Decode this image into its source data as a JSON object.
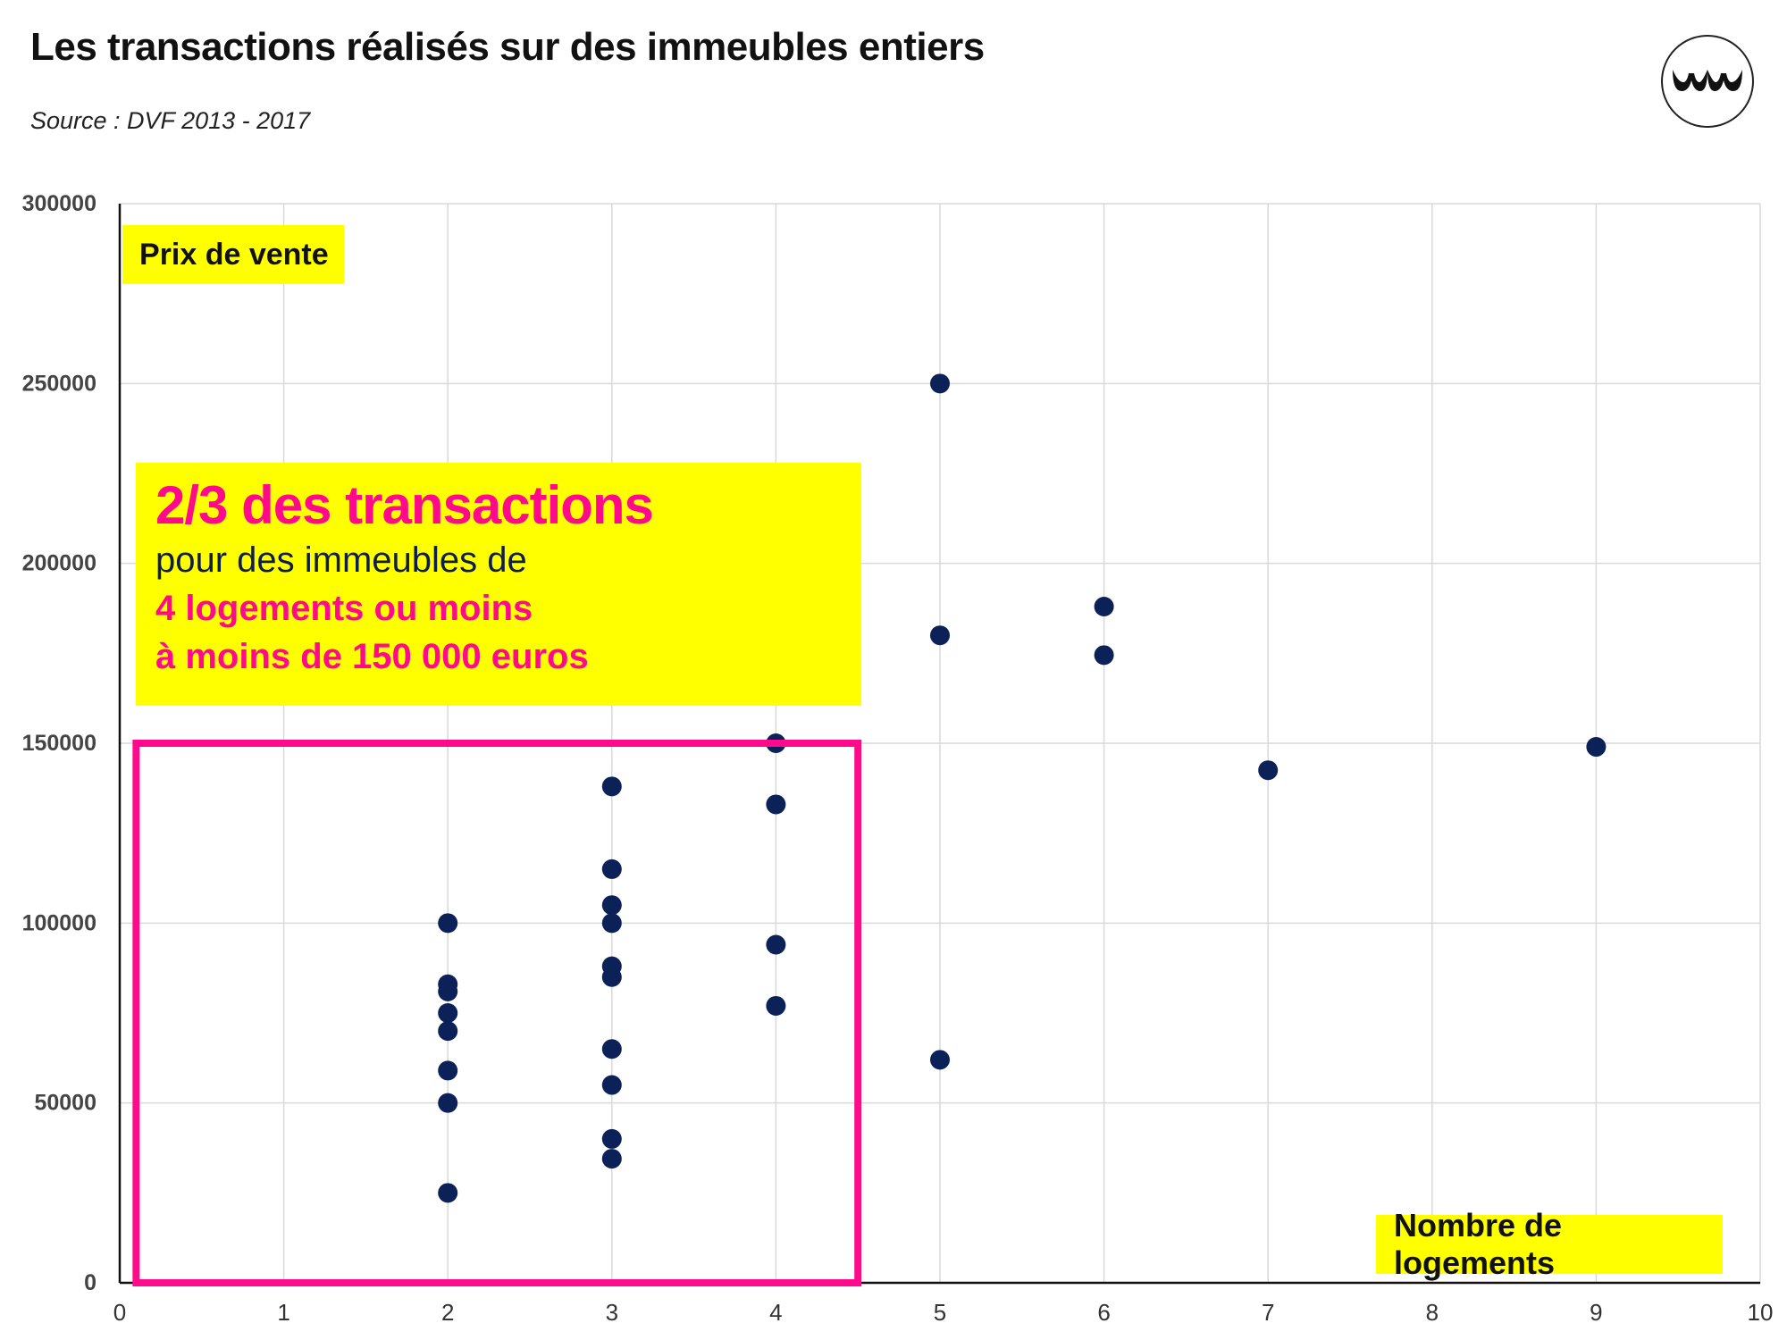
{
  "header": {
    "title": "Les transactions réalisés sur des immeubles entiers",
    "source": "Source : DVF 2013 - 2017"
  },
  "logo": {
    "icon": "brand-logo-icon"
  },
  "callout": {
    "headline": "2/3 des transactions",
    "line2": "pour des immeubles de",
    "line3": "4 logements ou moins",
    "line4": "à moins de 150 000 euros",
    "colors": {
      "background": "#ffff00",
      "accent": "#ff0a8c",
      "text": "#0d1d4f"
    }
  },
  "chart_data": {
    "type": "scatter",
    "title": "",
    "xlabel": "Nombre de logements",
    "ylabel": "Prix de vente",
    "xlim": [
      0,
      10
    ],
    "ylim": [
      0,
      300000
    ],
    "x_ticks": [
      0,
      1,
      2,
      3,
      4,
      5,
      6,
      7,
      8,
      9,
      10
    ],
    "y_ticks": [
      0,
      50000,
      100000,
      150000,
      200000,
      250000,
      300000
    ],
    "grid": true,
    "point_color": "#0b2158",
    "highlight_box": {
      "x_range": [
        0.1,
        4.5
      ],
      "y_range": [
        0,
        150000
      ],
      "color": "#ff0a8c"
    },
    "points": [
      {
        "x": 2,
        "y": 100000
      },
      {
        "x": 2,
        "y": 83000
      },
      {
        "x": 2,
        "y": 81000
      },
      {
        "x": 2,
        "y": 75000
      },
      {
        "x": 2,
        "y": 70000
      },
      {
        "x": 2,
        "y": 59000
      },
      {
        "x": 2,
        "y": 50000
      },
      {
        "x": 2,
        "y": 25000
      },
      {
        "x": 3,
        "y": 138000
      },
      {
        "x": 3,
        "y": 115000
      },
      {
        "x": 3,
        "y": 105000
      },
      {
        "x": 3,
        "y": 100000
      },
      {
        "x": 3,
        "y": 88000
      },
      {
        "x": 3,
        "y": 85000
      },
      {
        "x": 3,
        "y": 65000
      },
      {
        "x": 3,
        "y": 55000
      },
      {
        "x": 3,
        "y": 40000
      },
      {
        "x": 3,
        "y": 34500
      },
      {
        "x": 4,
        "y": 150000
      },
      {
        "x": 4,
        "y": 133000
      },
      {
        "x": 4,
        "y": 94000
      },
      {
        "x": 4,
        "y": 77000
      },
      {
        "x": 5,
        "y": 250000
      },
      {
        "x": 5,
        "y": 180000
      },
      {
        "x": 5,
        "y": 62000
      },
      {
        "x": 6,
        "y": 188000
      },
      {
        "x": 6,
        "y": 174500
      },
      {
        "x": 7,
        "y": 142500
      },
      {
        "x": 9,
        "y": 149000
      }
    ]
  }
}
